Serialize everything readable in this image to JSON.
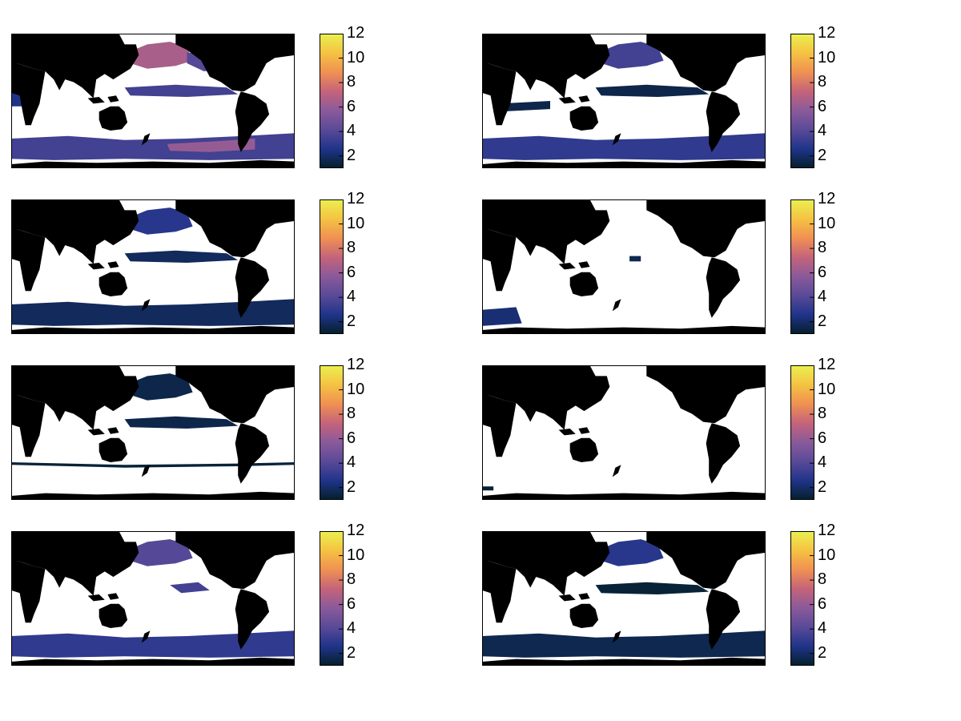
{
  "chart_data": {
    "type": "heatmap",
    "layout": "4 rows x 2 columns of global ocean maps, each with its own vertical colorbar",
    "colormap": {
      "name": "thermal",
      "stops": [
        "#04202c",
        "#20348a",
        "#5a4a98",
        "#8a5a9a",
        "#c5637a",
        "#f09052",
        "#f5c242",
        "#eaf050"
      ],
      "range": [
        1,
        12
      ]
    },
    "colorbar_ticks": [
      "2",
      "4",
      "6",
      "8",
      "10",
      "12"
    ],
    "colorbar_tick_values": [
      2,
      4,
      6,
      8,
      10,
      12
    ],
    "land_color": "#000000",
    "nodata_color": "#ffffff",
    "panels": [
      {
        "row": 1,
        "col": 1,
        "regions": [
          {
            "region": "North Pacific subpolar gyre",
            "value": 6.5
          },
          {
            "region": "North Pacific eastern extension",
            "value": 4.0
          },
          {
            "region": "Equatorial Pacific band",
            "value": 3.5
          },
          {
            "region": "Eastern Indian Ocean",
            "value": 2.5
          },
          {
            "region": "Southern Ocean band",
            "value": 3.5
          },
          {
            "region": "Southern Ocean core (south of Americas)",
            "value": 6.0
          }
        ]
      },
      {
        "row": 1,
        "col": 2,
        "regions": [
          {
            "region": "North Pacific subpolar gyre",
            "value": 3.5
          },
          {
            "region": "Equatorial Pacific band",
            "value": 1.5
          },
          {
            "region": "Southern Indian Ocean",
            "value": 1.5
          },
          {
            "region": "Southern Ocean band",
            "value": 3.0
          }
        ]
      },
      {
        "row": 2,
        "col": 1,
        "regions": [
          {
            "region": "North Pacific subpolar gyre",
            "value": 2.8
          },
          {
            "region": "Equatorial Pacific band",
            "value": 1.8
          },
          {
            "region": "Southern Ocean band",
            "value": 1.8
          }
        ]
      },
      {
        "row": 2,
        "col": 2,
        "regions": [
          {
            "region": "Central Pacific spot",
            "value": 1.6
          },
          {
            "region": "Southern Ocean patches",
            "value": 2.2
          }
        ]
      },
      {
        "row": 3,
        "col": 1,
        "regions": [
          {
            "region": "North Pacific subpolar gyre",
            "value": 1.5
          },
          {
            "region": "Equatorial Pacific band",
            "value": 1.5
          },
          {
            "region": "Southern Ocean thin fronts",
            "value": 1.2
          }
        ]
      },
      {
        "row": 3,
        "col": 2,
        "regions": [
          {
            "region": "Sparse coastal cells",
            "value": 1.2
          }
        ]
      },
      {
        "row": 4,
        "col": 1,
        "regions": [
          {
            "region": "North Pacific subpolar gyre",
            "value": 4.0
          },
          {
            "region": "Eastern tropical Pacific",
            "value": 3.5
          },
          {
            "region": "Southern Ocean band",
            "value": 3.0
          }
        ]
      },
      {
        "row": 4,
        "col": 2,
        "regions": [
          {
            "region": "North Pacific subpolar gyre",
            "value": 2.8
          },
          {
            "region": "Equatorial Pacific band",
            "value": 1.2
          },
          {
            "region": "Southern Ocean band",
            "value": 1.6
          }
        ]
      }
    ]
  }
}
